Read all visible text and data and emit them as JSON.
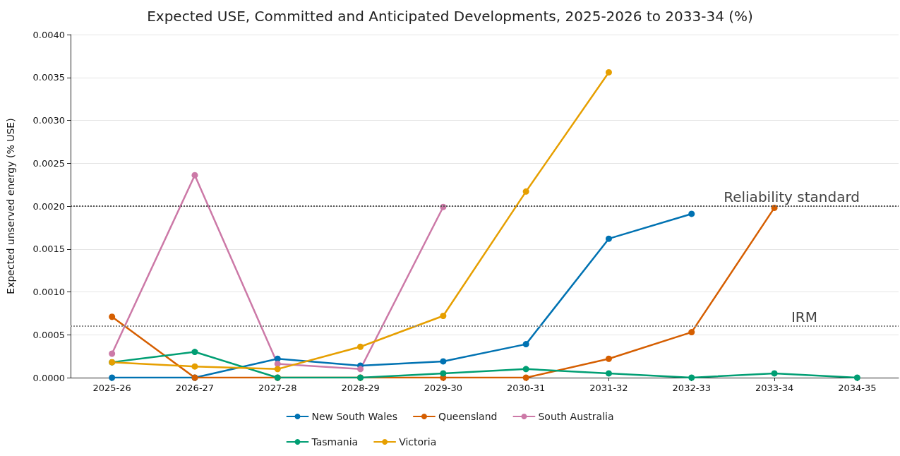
{
  "chart_data": {
    "type": "line",
    "title": "Expected USE, Committed and Anticipated Developments, 2025-2026 to 2033-34 (%)",
    "ylabel": "Expected unserved energy (% USE)",
    "categories": [
      "2025-26",
      "2026-27",
      "2027-28",
      "2028-29",
      "2029-30",
      "2030-31",
      "2031-32",
      "2032-33",
      "2033-34",
      "2034-35"
    ],
    "series": [
      {
        "name": "New South Wales",
        "color": "#0072b2",
        "values": [
          0.0,
          0.0,
          0.00022,
          0.00014,
          0.00019,
          0.00039,
          0.00162,
          0.00191,
          null,
          null
        ]
      },
      {
        "name": "Queensland",
        "color": "#d55e00",
        "values": [
          0.00071,
          0.0,
          0.0,
          0.0,
          0.0,
          0.0,
          0.00022,
          0.00053,
          0.00198,
          null
        ]
      },
      {
        "name": "South Australia",
        "color": "#cc79a7",
        "values": [
          0.00028,
          0.00236,
          0.00016,
          0.0001,
          0.00199,
          null,
          null,
          null,
          null,
          null
        ]
      },
      {
        "name": "Tasmania",
        "color": "#009e73",
        "values": [
          0.00018,
          0.0003,
          0.0,
          0.0,
          5e-05,
          0.0001,
          5e-05,
          0.0,
          5e-05,
          0.0
        ]
      },
      {
        "name": "Victoria",
        "color": "#e69f00",
        "values": [
          0.00018,
          0.00013,
          0.0001,
          0.00036,
          0.00072,
          0.00217,
          0.00356,
          null,
          null,
          null
        ]
      }
    ],
    "ylim": [
      0,
      0.004
    ],
    "yticks": [
      {
        "value": 0,
        "label": "0.0000"
      },
      {
        "value": 0.0005,
        "label": "0.0005"
      },
      {
        "value": 0.001,
        "label": "0.0010"
      },
      {
        "value": 0.0015,
        "label": "0.0015"
      },
      {
        "value": 0.002,
        "label": "0.0020"
      },
      {
        "value": 0.0025,
        "label": "0.0025"
      },
      {
        "value": 0.003,
        "label": "0.0030"
      },
      {
        "value": 0.0035,
        "label": "0.0035"
      },
      {
        "value": 0.004,
        "label": "0.0040"
      }
    ],
    "ref_lines": [
      {
        "axis": "y",
        "value": 0.002,
        "label": "Reliability standard",
        "color": "#555555",
        "line_style": "dotted"
      },
      {
        "axis": "y",
        "value": 0.0006,
        "label": "IRM",
        "color": "#888888",
        "line_style": "dotted"
      }
    ],
    "grid": "y",
    "legend": "bottom",
    "marker": "circle",
    "line_style": "solid"
  }
}
